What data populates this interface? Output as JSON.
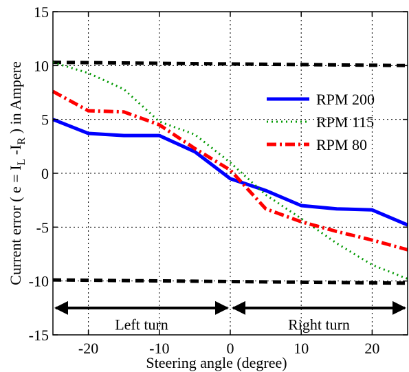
{
  "chart_data": {
    "type": "line",
    "title": "",
    "xlabel": "Steering angle (degree)",
    "ylabel_parts": {
      "prefix": "Current error ( e = I",
      "sub1": "L",
      "mid": " -I",
      "sub2": "R",
      "suffix": " ) in Ampere"
    },
    "xlim": [
      -25,
      25
    ],
    "ylim": [
      -15,
      15
    ],
    "xticks": [
      -20,
      -10,
      0,
      10,
      20
    ],
    "yticks": [
      15,
      10,
      5,
      0,
      -5,
      -10,
      -15
    ],
    "grid": true,
    "legend_position": "right",
    "series": [
      {
        "name": "RPM 200",
        "color": "#0000ff",
        "style": "solid",
        "x": [
          -25,
          -20,
          -15,
          -10,
          -5,
          0,
          5,
          10,
          15,
          20,
          25
        ],
        "y": [
          5.0,
          3.7,
          3.5,
          3.5,
          2.0,
          -0.5,
          -1.6,
          -3.0,
          -3.3,
          -3.4,
          -4.8
        ]
      },
      {
        "name": "RPM 115",
        "color": "#009900",
        "style": "dotted",
        "x": [
          -25,
          -20,
          -15,
          -10,
          -5,
          0,
          5,
          10,
          15,
          20,
          25
        ],
        "y": [
          10.3,
          9.3,
          7.8,
          4.8,
          3.6,
          1.0,
          -2.0,
          -4.2,
          -6.5,
          -8.5,
          -9.8
        ]
      },
      {
        "name": "RPM 80",
        "color": "#ff0000",
        "style": "dashdot",
        "x": [
          -25,
          -20,
          -15,
          -10,
          -5,
          0,
          5,
          10,
          15,
          20,
          25
        ],
        "y": [
          7.6,
          5.8,
          5.7,
          4.5,
          2.3,
          0.3,
          -3.3,
          -4.5,
          -5.4,
          -6.2,
          -7.1
        ]
      }
    ],
    "reference_lines": [
      {
        "color": "#000000",
        "style": "dashed",
        "x": [
          -25,
          25
        ],
        "y": [
          10.3,
          10.0
        ]
      },
      {
        "color": "#000000",
        "style": "dashed",
        "x": [
          -25,
          25
        ],
        "y": [
          -9.9,
          -10.2
        ]
      }
    ],
    "annotations": [
      {
        "text": "Left turn",
        "x_range": [
          -25,
          0
        ],
        "y": -12.5,
        "label_y": -14.0
      },
      {
        "text": "Right turn",
        "x_range": [
          0,
          25
        ],
        "y": -12.5,
        "label_y": -14.0
      }
    ]
  }
}
